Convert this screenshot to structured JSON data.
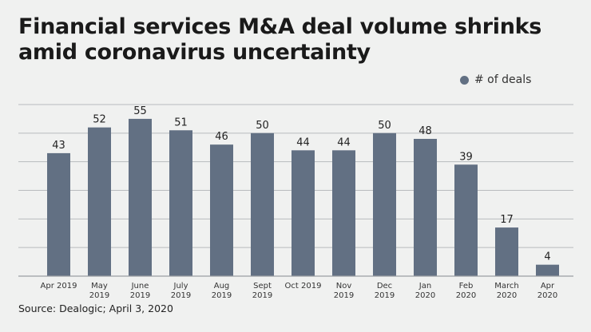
{
  "chart_data": {
    "type": "bar",
    "title": "Financial services M&A deal volume shrinks amid coronavirus uncertainty",
    "categories": [
      [
        "Apr 2019"
      ],
      [
        "May",
        "2019"
      ],
      [
        "June",
        "2019"
      ],
      [
        "July",
        "2019"
      ],
      [
        "Aug",
        "2019"
      ],
      [
        "Sept",
        "2019"
      ],
      [
        "Oct 2019"
      ],
      [
        "Nov",
        "2019"
      ],
      [
        "Dec",
        "2019"
      ],
      [
        "Jan",
        "2020"
      ],
      [
        "Feb",
        "2020"
      ],
      [
        "March",
        "2020"
      ],
      [
        "Apr",
        "2020"
      ]
    ],
    "series": [
      {
        "name": "# of deals",
        "values": [
          43,
          52,
          55,
          51,
          46,
          50,
          44,
          44,
          50,
          48,
          39,
          17,
          4
        ]
      }
    ],
    "ylim": [
      0,
      60
    ],
    "grid": true,
    "grid_step": 10,
    "legend_placement": "top-right",
    "data_labels": true,
    "colors": {
      "bar": "#627083",
      "grid": "#b8bbbe",
      "background": "#f0f1f0"
    },
    "source": "Source: Dealogic; April 3, 2020"
  }
}
